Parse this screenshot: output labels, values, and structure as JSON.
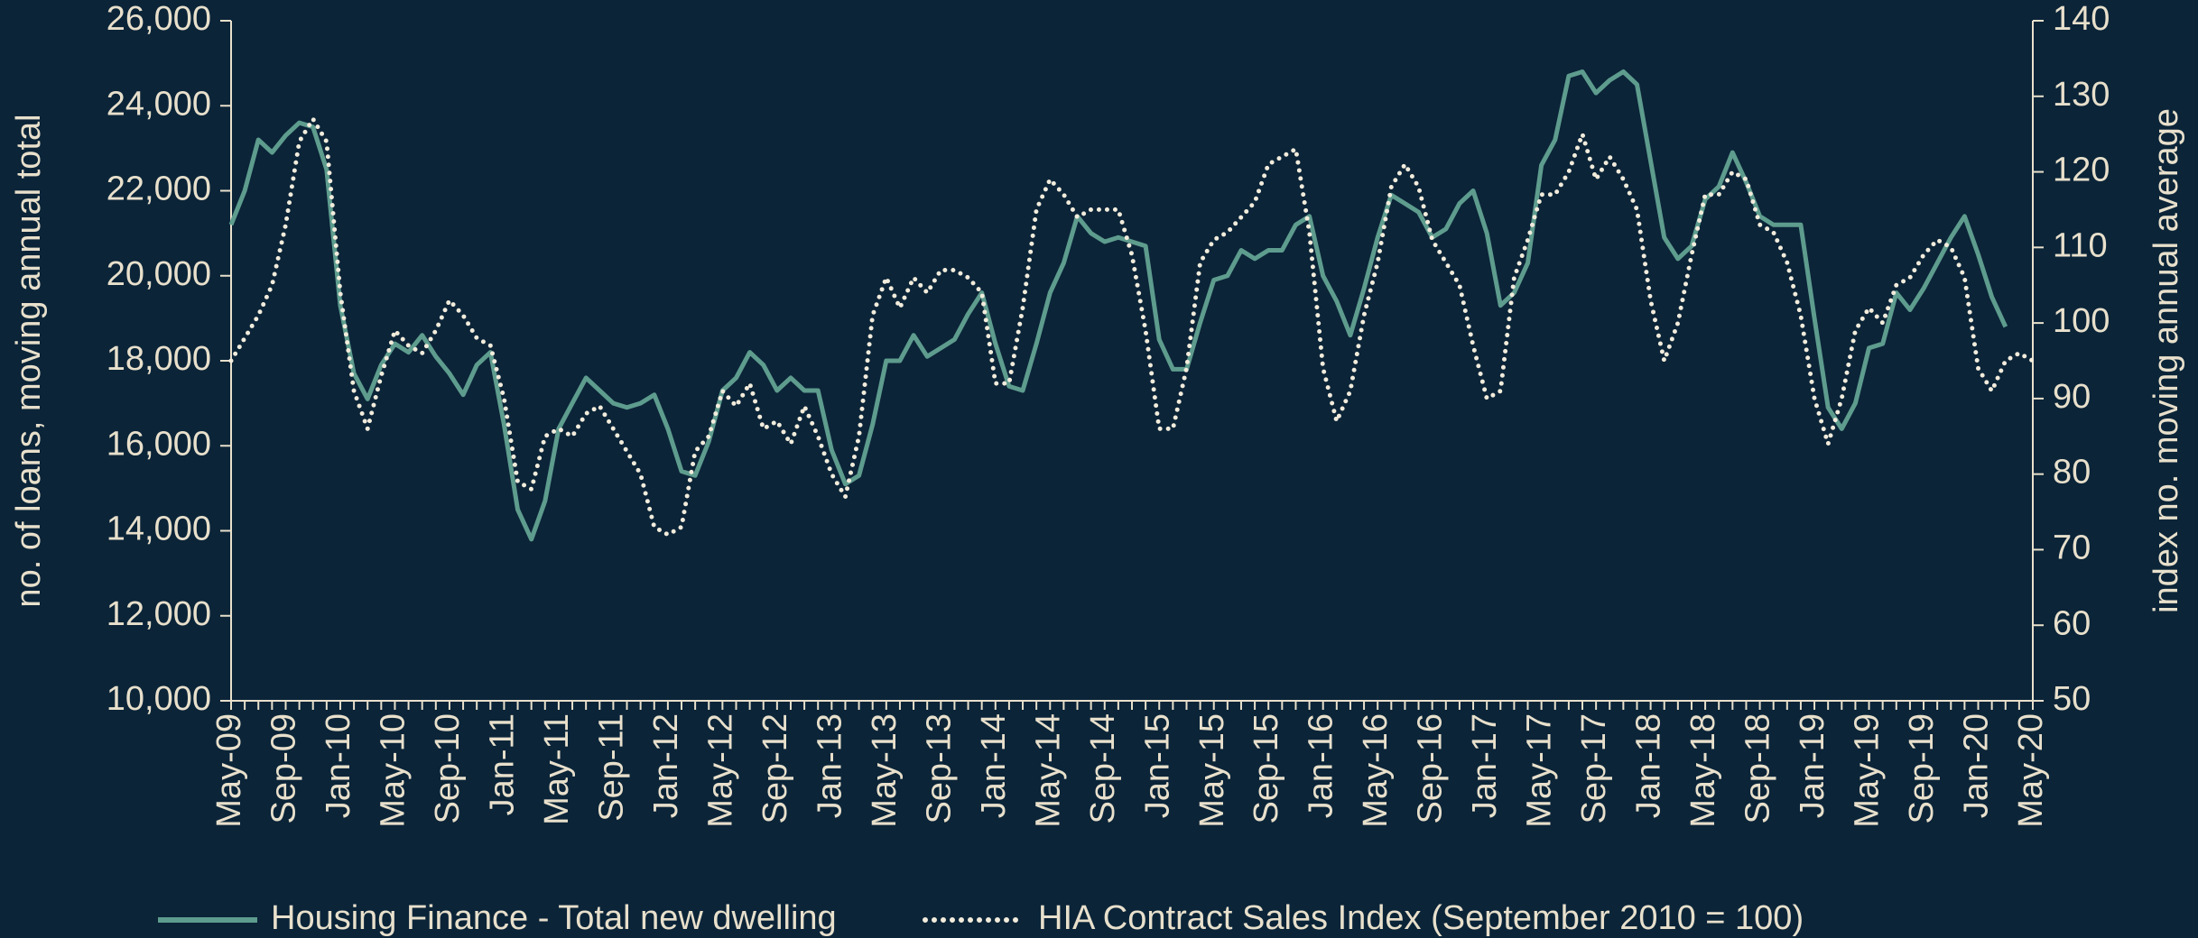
{
  "chart_data": {
    "type": "line",
    "y_label": "no. of  loans, moving annual total",
    "y2_label": "index no. moving annual average",
    "categories": [
      "May-09",
      null,
      null,
      null,
      "Sep-09",
      null,
      null,
      null,
      "Jan-10",
      null,
      null,
      null,
      "May-10",
      null,
      null,
      null,
      "Sep-10",
      null,
      null,
      null,
      "Jan-11",
      null,
      null,
      null,
      "May-11",
      null,
      null,
      null,
      "Sep-11",
      null,
      null,
      null,
      "Jan-12",
      null,
      null,
      null,
      "May-12",
      null,
      null,
      null,
      "Sep-12",
      null,
      null,
      null,
      "Jan-13",
      null,
      null,
      null,
      "May-13",
      null,
      null,
      null,
      "Sep-13",
      null,
      null,
      null,
      "Jan-14",
      null,
      null,
      null,
      "May-14",
      null,
      null,
      null,
      "Sep-14",
      null,
      null,
      null,
      "Jan-15",
      null,
      null,
      null,
      "May-15",
      null,
      null,
      null,
      "Sep-15",
      null,
      null,
      null,
      "Jan-16",
      null,
      null,
      null,
      "May-16",
      null,
      null,
      null,
      "Sep-16",
      null,
      null,
      null,
      "Jan-17",
      null,
      null,
      null,
      "May-17",
      null,
      null,
      null,
      "Sep-17",
      null,
      null,
      null,
      "Jan-18",
      null,
      null,
      null,
      "May-18",
      null,
      null,
      null,
      "Sep-18",
      null,
      null,
      null,
      "Jan-19",
      null,
      null,
      null,
      "May-19",
      null,
      null,
      null,
      "Sep-19",
      null,
      null,
      null,
      "Jan-20",
      null,
      null,
      null,
      "May-20"
    ],
    "series": [
      {
        "name": "Housing Finance - Total new dwelling",
        "color": "#5e9c8e",
        "dash": "solid",
        "axis": "y",
        "values": [
          21200,
          22000,
          23200,
          22900,
          23300,
          23600,
          23500,
          22500,
          19300,
          17700,
          17100,
          17900,
          18400,
          18200,
          18600,
          18100,
          17700,
          17200,
          17900,
          18200,
          16500,
          14500,
          13800,
          14700,
          16400,
          17000,
          17600,
          17300,
          17000,
          16900,
          17000,
          17200,
          16400,
          15400,
          15300,
          16100,
          17300,
          17600,
          18200,
          17900,
          17300,
          17600,
          17300,
          17300,
          15900,
          15100,
          15300,
          16500,
          18000,
          18000,
          18600,
          18100,
          18300,
          18500,
          19100,
          19600,
          18400,
          17400,
          17300,
          18400,
          19600,
          20300,
          21400,
          21000,
          20800,
          20900,
          20800,
          20700,
          18500,
          17800,
          17800,
          18900,
          19900,
          20000,
          20600,
          20400,
          20600,
          20600,
          21200,
          21400,
          20000,
          19400,
          18600,
          19700,
          20900,
          21900,
          21700,
          21500,
          20900,
          21100,
          21700,
          22000,
          21000,
          19300,
          19600,
          20300,
          22600,
          23200,
          24700,
          24800,
          24300,
          24600,
          24800,
          24500,
          22700,
          20900,
          20400,
          20700,
          21800,
          22100,
          22900,
          22200,
          21400,
          21200,
          21200,
          21200,
          19000,
          16900,
          16400,
          17000,
          18300,
          18400,
          19600,
          19200,
          19700,
          20300,
          20900,
          21400,
          20500,
          19500,
          18800,
          null,
          null
        ]
      },
      {
        "name": "HIA Contract Sales Index (September 2010 = 100)",
        "color": "#f2ecdc",
        "dash": "dotted",
        "axis": "y2",
        "values": [
          95,
          98,
          101,
          105,
          113,
          124,
          127,
          124,
          104,
          91,
          86,
          93,
          99,
          97,
          96,
          99,
          103,
          101,
          98,
          97,
          90,
          79,
          78,
          85,
          86,
          85,
          88,
          89,
          86,
          83,
          80,
          73,
          72,
          73,
          83,
          85,
          91,
          89,
          92,
          86,
          87,
          84,
          89,
          85,
          80,
          77,
          85,
          101,
          106,
          102,
          106,
          104,
          107,
          107,
          106,
          104,
          92,
          92,
          102,
          115,
          119,
          117,
          114,
          115,
          115,
          115,
          109,
          99,
          86,
          86,
          94,
          108,
          111,
          112,
          114,
          116,
          121,
          122,
          123,
          112,
          94,
          87,
          91,
          101,
          108,
          118,
          121,
          118,
          111,
          108,
          105,
          97,
          90,
          91,
          106,
          111,
          117,
          117,
          120,
          125,
          119,
          122,
          119,
          115,
          103,
          95,
          100,
          109,
          117,
          117,
          120,
          119,
          113,
          112,
          108,
          101,
          90,
          84,
          90,
          99,
          102,
          100,
          105,
          106,
          109,
          111,
          110,
          106,
          94,
          91,
          95,
          96,
          95
        ]
      }
    ],
    "ylim": [
      10000,
      26000
    ],
    "yticks": [
      {
        "value": 10000,
        "label": "10,000"
      },
      {
        "value": 12000,
        "label": "12,000"
      },
      {
        "value": 14000,
        "label": "14,000"
      },
      {
        "value": 16000,
        "label": "16,000"
      },
      {
        "value": 18000,
        "label": "18,000"
      },
      {
        "value": 20000,
        "label": "20,000"
      },
      {
        "value": 22000,
        "label": "22,000"
      },
      {
        "value": 24000,
        "label": "24,000"
      },
      {
        "value": 26000,
        "label": "26,000"
      }
    ],
    "y2lim": [
      50,
      140
    ],
    "y2ticks": [
      50,
      60,
      70,
      80,
      90,
      100,
      110,
      120,
      130,
      140
    ],
    "grid": false,
    "legend": "bottom"
  }
}
